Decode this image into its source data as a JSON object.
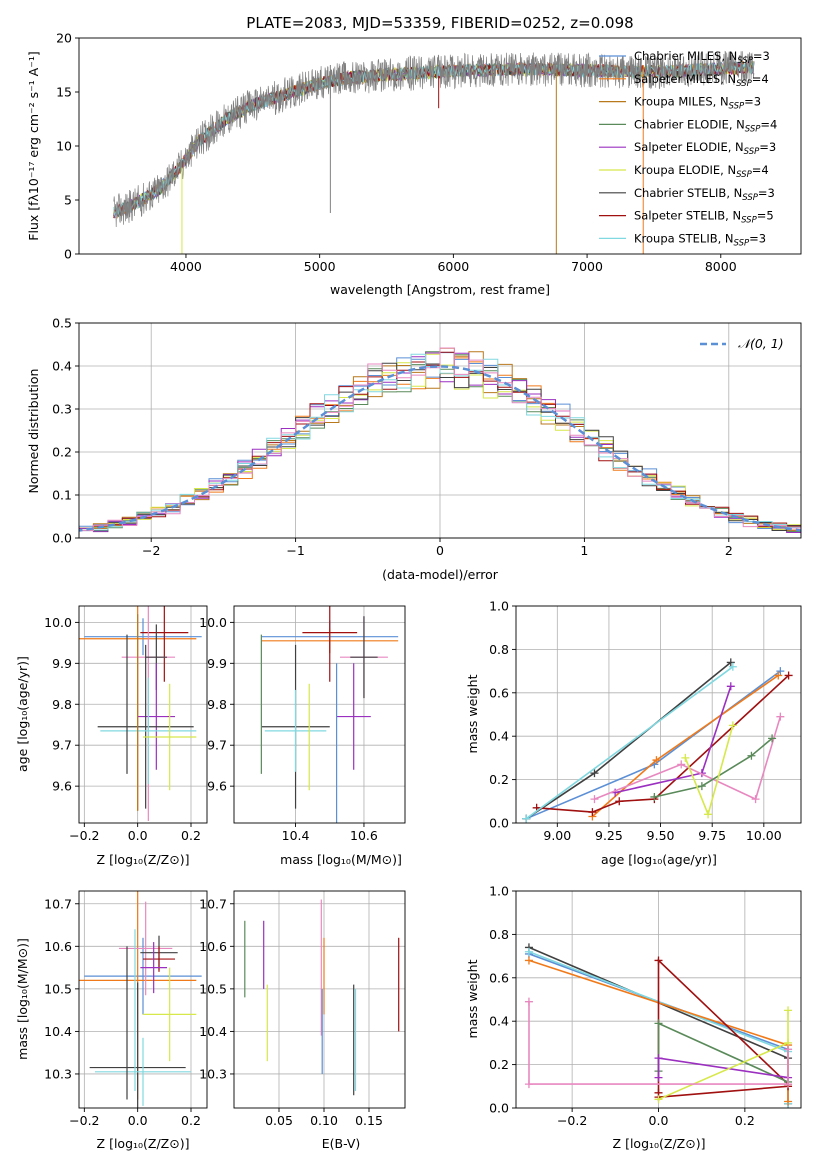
{
  "chart_data": [
    {
      "type": "line",
      "id": "spectrum",
      "title": "PLATE=2083, MJD=53359, FIBERID=0252, z=0.098",
      "xlabel": "wavelength [Angstrom, rest frame]",
      "ylabel": "Flux [fλ10⁻¹⁷ erg cm⁻² s⁻¹ A⁻¹]",
      "xlim": [
        3200,
        8600
      ],
      "ylim": [
        0,
        20
      ],
      "xticks": [
        4000,
        5000,
        6000,
        7000,
        8000
      ],
      "yticks": [
        0,
        5,
        10,
        15,
        20
      ],
      "grid": false,
      "legend_position": "upper-right",
      "continuum": {
        "x": [
          3450,
          3600,
          3800,
          3950,
          4100,
          4300,
          4500,
          4800,
          5000,
          5200,
          5500,
          5800,
          6100,
          6400,
          6700,
          7000,
          7300,
          7600,
          7900,
          8250
        ],
        "y": [
          3.8,
          4.5,
          6.0,
          8.0,
          10.5,
          12.5,
          13.8,
          15.0,
          15.8,
          16.3,
          16.6,
          16.8,
          17.0,
          17.1,
          17.1,
          17.0,
          16.9,
          16.9,
          17.1,
          17.3
        ]
      },
      "series": [
        {
          "name": "Chabrier MILES, N_SSP=3",
          "color": "#5b8fd6"
        },
        {
          "name": "Salpeter MILES, N_SSP=4",
          "color": "#f07a1a"
        },
        {
          "name": "Kroupa MILES, N_SSP=3",
          "color": "#b8781c"
        },
        {
          "name": "Chabrier ELODIE, N_SSP=4",
          "color": "#5a8a5a"
        },
        {
          "name": "Salpeter ELODIE, N_SSP=3",
          "color": "#9b30c0"
        },
        {
          "name": "Kroupa ELODIE, N_SSP=4",
          "color": "#d6e84a"
        },
        {
          "name": "Chabrier STELIB, N_SSP=3",
          "color": "#404040"
        },
        {
          "name": "Salpeter STELIB, N_SSP=5",
          "color": "#a01010"
        },
        {
          "name": "Kroupa STELIB, N_SSP=3",
          "color": "#80d8e0"
        }
      ]
    },
    {
      "type": "line",
      "id": "residuals",
      "xlabel": "(data-model)/error",
      "ylabel": "Normed distribution",
      "xlim": [
        -2.5,
        2.5
      ],
      "ylim": [
        0,
        0.5
      ],
      "xticks": [
        -2,
        -1,
        0,
        1,
        2
      ],
      "yticks": [
        0.0,
        0.1,
        0.2,
        0.3,
        0.4,
        0.5
      ],
      "grid": true,
      "legend_position": "upper-right",
      "legend": "𝒩(0, 1)",
      "gaussian_color": "#5b8fd6",
      "bin_width": 0.1,
      "histograms": [
        {
          "color": "#5b8fd6",
          "seed": 1
        },
        {
          "color": "#f07a1a",
          "seed": 2
        },
        {
          "color": "#b8781c",
          "seed": 3
        },
        {
          "color": "#5a8a5a",
          "seed": 4
        },
        {
          "color": "#9b30c0",
          "seed": 5
        },
        {
          "color": "#d6e84a",
          "seed": 6
        },
        {
          "color": "#404040",
          "seed": 7
        },
        {
          "color": "#a01010",
          "seed": 8
        },
        {
          "color": "#80d8e0",
          "seed": 9
        },
        {
          "color": "#e888c0",
          "seed": 10
        }
      ]
    },
    {
      "type": "scatter",
      "id": "age-vs-Z",
      "xlabel": "Z [log₁₀(Z/Z⊙)]",
      "ylabel": "age  [log₁₀(age/yr)]",
      "xlim": [
        -0.22,
        0.26
      ],
      "ylim": [
        9.51,
        10.04
      ],
      "xticks": [
        -0.2,
        0.0,
        0.2
      ],
      "xticklabels": [
        "−0.2",
        "0.0",
        "0.2"
      ],
      "yticks": [
        9.6,
        9.7,
        9.8,
        9.9,
        10.0
      ],
      "grid": true,
      "points": [
        {
          "x": 0.02,
          "y": 9.965,
          "xerr": 0.22,
          "yerr": 0.045,
          "color": "#5b8fd6"
        },
        {
          "x": 0.0,
          "y": 9.96,
          "xerr": 0.22,
          "yerr": 0.42,
          "color": "#f07a1a"
        },
        {
          "x": 0.1,
          "y": 9.975,
          "xerr": 0.09,
          "yerr": 0.12,
          "color": "#a01010"
        },
        {
          "x": 0.04,
          "y": 9.915,
          "xerr": 0.1,
          "yerr": 0.4,
          "color": "#e888c0"
        },
        {
          "x": 0.07,
          "y": 9.915,
          "xerr": 0.04,
          "yerr": 0.08,
          "color": "#404040"
        },
        {
          "x": 0.07,
          "y": 9.77,
          "xerr": 0.07,
          "yerr": 0.13,
          "color": "#9b30c0"
        },
        {
          "x": 0.03,
          "y": 9.745,
          "xerr": 0.18,
          "yerr": 0.2,
          "color": "#404040"
        },
        {
          "x": 0.04,
          "y": 9.735,
          "xerr": 0.18,
          "yerr": 0.13,
          "color": "#80d8e0"
        },
        {
          "x": 0.12,
          "y": 9.72,
          "xerr": 0.1,
          "yerr": 0.13,
          "color": "#d6e84a"
        },
        {
          "x": -0.04,
          "y": 9.8,
          "xerr": 0.0,
          "yerr": 0.17,
          "color": "#404040"
        },
        {
          "x": 0.0,
          "y": 9.78,
          "xerr": 0.0,
          "yerr": 0.24,
          "color": "#b8781c"
        }
      ]
    },
    {
      "type": "scatter",
      "id": "age-vs-mass",
      "xlabel": "mass [log₁₀(M/M⊙)]",
      "ylabel": "",
      "xlim": [
        10.22,
        10.72
      ],
      "ylim": [
        9.51,
        10.04
      ],
      "xticks": [
        10.4,
        10.6
      ],
      "yticks": [
        9.6,
        9.7,
        9.8,
        9.9,
        10.0
      ],
      "grid": true,
      "points": [
        {
          "x": 10.5,
          "y": 9.965,
          "xerr": 0.2,
          "yerr": 0.04,
          "color": "#5b8fd6"
        },
        {
          "x": 10.5,
          "y": 9.955,
          "xerr": 0.2,
          "yerr": 0.03,
          "color": "#f07a1a"
        },
        {
          "x": 10.5,
          "y": 9.975,
          "xerr": 0.08,
          "yerr": 0.12,
          "color": "#a01010"
        },
        {
          "x": 10.6,
          "y": 9.915,
          "xerr": 0.07,
          "yerr": 0.1,
          "color": "#e888c0"
        },
        {
          "x": 10.6,
          "y": 9.915,
          "xerr": 0.04,
          "yerr": 0.1,
          "color": "#404040"
        },
        {
          "x": 10.57,
          "y": 9.77,
          "xerr": 0.05,
          "yerr": 0.13,
          "color": "#9b30c0"
        },
        {
          "x": 10.4,
          "y": 9.745,
          "xerr": 0.1,
          "yerr": 0.2,
          "color": "#404040"
        },
        {
          "x": 10.4,
          "y": 9.735,
          "xerr": 0.09,
          "yerr": 0.1,
          "color": "#80d8e0"
        },
        {
          "x": 10.44,
          "y": 9.72,
          "xerr": 0.0,
          "yerr": 0.13,
          "color": "#d6e84a"
        },
        {
          "x": 10.3,
          "y": 9.8,
          "xerr": 0.0,
          "yerr": 0.17,
          "color": "#5a8a5a"
        },
        {
          "x": 10.52,
          "y": 9.7,
          "xerr": 0.0,
          "yerr": 0.2,
          "color": "#5b8fd6"
        }
      ]
    },
    {
      "type": "line",
      "id": "weight-vs-age",
      "xlabel": "age  [log₁₀(age/yr)]",
      "ylabel": "mass weight",
      "xlim": [
        8.8,
        10.18
      ],
      "ylim": [
        0,
        1
      ],
      "xticks": [
        9.0,
        9.25,
        9.5,
        9.75,
        10.0
      ],
      "xticklabels": [
        "9.00",
        "9.25",
        "9.50",
        "9.75",
        "10.00"
      ],
      "yticks": [
        0.0,
        0.2,
        0.4,
        0.6,
        0.8,
        1.0
      ],
      "grid": true,
      "series": [
        {
          "color": "#5b8fd6",
          "x": [
            8.85,
            9.47,
            10.08
          ],
          "y": [
            0.02,
            0.27,
            0.7
          ]
        },
        {
          "color": "#f07a1a",
          "x": [
            9.17,
            9.48,
            10.07
          ],
          "y": [
            0.03,
            0.29,
            0.68
          ]
        },
        {
          "color": "#404040",
          "x": [
            8.85,
            9.18,
            9.84
          ],
          "y": [
            0.02,
            0.23,
            0.74
          ]
        },
        {
          "color": "#a01010",
          "x": [
            8.9,
            9.17,
            9.3,
            9.47,
            10.12
          ],
          "y": [
            0.07,
            0.05,
            0.1,
            0.11,
            0.68
          ]
        },
        {
          "color": "#9b30c0",
          "x": [
            9.28,
            9.7,
            9.84
          ],
          "y": [
            0.14,
            0.23,
            0.63
          ]
        },
        {
          "color": "#e888c0",
          "x": [
            9.18,
            9.6,
            9.96,
            10.08
          ],
          "y": [
            0.11,
            0.27,
            0.11,
            0.49
          ]
        },
        {
          "color": "#5a8a5a",
          "x": [
            9.47,
            9.7,
            9.94,
            10.04
          ],
          "y": [
            0.12,
            0.17,
            0.31,
            0.39
          ]
        },
        {
          "color": "#d6e84a",
          "x": [
            9.62,
            9.73,
            9.85
          ],
          "y": [
            0.3,
            0.04,
            0.45
          ]
        },
        {
          "color": "#80d8e0",
          "x": [
            8.85,
            9.85
          ],
          "y": [
            0.02,
            0.72
          ]
        }
      ]
    },
    {
      "type": "scatter",
      "id": "mass-vs-Z",
      "xlabel": "Z [log₁₀(Z/Z⊙)]",
      "ylabel": "mass [log₁₀(M/M⊙)]",
      "xlim": [
        -0.22,
        0.26
      ],
      "ylim": [
        10.22,
        10.73
      ],
      "xticks": [
        -0.2,
        0.0,
        0.2
      ],
      "xticklabels": [
        "−0.2",
        "0.0",
        "0.2"
      ],
      "yticks": [
        10.3,
        10.4,
        10.5,
        10.6,
        10.7
      ],
      "grid": true,
      "points": [
        {
          "x": 0.02,
          "y": 10.53,
          "xerr": 0.22,
          "yerr": 0.09,
          "color": "#5b8fd6"
        },
        {
          "x": 0.0,
          "y": 10.52,
          "xerr": 0.22,
          "yerr": 0.28,
          "color": "#f07a1a"
        },
        {
          "x": 0.03,
          "y": 10.595,
          "xerr": 0.1,
          "yerr": 0.11,
          "color": "#e888c0"
        },
        {
          "x": 0.08,
          "y": 10.585,
          "xerr": 0.07,
          "yerr": 0.04,
          "color": "#404040"
        },
        {
          "x": 0.08,
          "y": 10.57,
          "xerr": 0.06,
          "yerr": 0.03,
          "color": "#a01010"
        },
        {
          "x": 0.06,
          "y": 10.55,
          "xerr": 0.05,
          "yerr": 0.06,
          "color": "#9b30c0"
        },
        {
          "x": 0.12,
          "y": 10.44,
          "xerr": 0.1,
          "yerr": 0.11,
          "color": "#d6e84a"
        },
        {
          "x": 0.0,
          "y": 10.315,
          "xerr": 0.18,
          "yerr": 0.2,
          "color": "#404040"
        },
        {
          "x": 0.02,
          "y": 10.305,
          "xerr": 0.18,
          "yerr": 0.08,
          "color": "#80d8e0"
        },
        {
          "x": -0.04,
          "y": 10.42,
          "xerr": 0.0,
          "yerr": 0.18,
          "color": "#404040"
        },
        {
          "x": -0.01,
          "y": 10.45,
          "xerr": 0.0,
          "yerr": 0.19,
          "color": "#80d8e0"
        }
      ]
    },
    {
      "type": "scatter",
      "id": "mass-vs-ebv",
      "xlabel": "E(B-V)",
      "ylabel": "",
      "xlim": [
        0.0,
        0.19
      ],
      "ylim": [
        10.22,
        10.73
      ],
      "xticks": [
        0.05,
        0.1,
        0.15
      ],
      "xticklabels": [
        "0.05",
        "0.10",
        "0.15"
      ],
      "yticks": [
        10.3,
        10.4,
        10.5,
        10.6,
        10.7
      ],
      "grid": true,
      "points": [
        {
          "x": 0.012,
          "y": 10.57,
          "yerr": 0.09,
          "color": "#5a8a5a"
        },
        {
          "x": 0.033,
          "y": 10.58,
          "yerr": 0.08,
          "color": "#9b30c0"
        },
        {
          "x": 0.037,
          "y": 10.42,
          "yerr": 0.09,
          "color": "#d6e84a"
        },
        {
          "x": 0.1,
          "y": 10.53,
          "yerr": 0.09,
          "color": "#f07a1a"
        },
        {
          "x": 0.097,
          "y": 10.55,
          "yerr": 0.16,
          "color": "#e888c0"
        },
        {
          "x": 0.098,
          "y": 10.4,
          "yerr": 0.1,
          "color": "#5b8fd6"
        },
        {
          "x": 0.133,
          "y": 10.38,
          "yerr": 0.13,
          "color": "#404040"
        },
        {
          "x": 0.135,
          "y": 10.38,
          "yerr": 0.12,
          "color": "#80d8e0"
        },
        {
          "x": 0.183,
          "y": 10.51,
          "yerr": 0.11,
          "color": "#a01010"
        }
      ]
    },
    {
      "type": "line",
      "id": "weight-vs-Z",
      "xlabel": "Z [log₁₀(Z/Z⊙)]",
      "ylabel": "mass weight",
      "xlim": [
        -0.33,
        0.33
      ],
      "ylim": [
        0,
        1
      ],
      "xticks": [
        -0.2,
        0.0,
        0.2
      ],
      "xticklabels": [
        "−0.2",
        "0.0",
        "0.2"
      ],
      "yticks": [
        0.0,
        0.2,
        0.4,
        0.6,
        0.8,
        1.0
      ],
      "grid": true,
      "series": [
        {
          "color": "#404040",
          "x": [
            -0.3,
            0.3,
            0.3
          ],
          "y": [
            0.74,
            0.23,
            0.02
          ]
        },
        {
          "color": "#5b8fd6",
          "x": [
            -0.3,
            0.3,
            0.3
          ],
          "y": [
            0.71,
            0.27,
            0.02
          ]
        },
        {
          "color": "#80d8e0",
          "x": [
            -0.3,
            0.3,
            0.3
          ],
          "y": [
            0.72,
            0.26,
            0.02
          ]
        },
        {
          "color": "#f07a1a",
          "x": [
            -0.3,
            0.3,
            0.3
          ],
          "y": [
            0.68,
            0.29,
            0.03
          ]
        },
        {
          "color": "#a01010",
          "x": [
            0.0,
            0.0,
            0.3,
            0.3,
            0.0
          ],
          "y": [
            0.07,
            0.68,
            0.11,
            0.1,
            0.05
          ]
        },
        {
          "color": "#5a8a5a",
          "x": [
            0.0,
            0.0,
            0.3
          ],
          "y": [
            0.17,
            0.39,
            0.12
          ]
        },
        {
          "color": "#9b30c0",
          "x": [
            0.0,
            0.0,
            0.3
          ],
          "y": [
            0.14,
            0.23,
            0.14
          ]
        },
        {
          "color": "#d6e84a",
          "x": [
            0.0,
            0.3,
            0.3
          ],
          "y": [
            0.04,
            0.3,
            0.45
          ]
        },
        {
          "color": "#e888c0",
          "x": [
            -0.3,
            -0.3,
            0.3,
            0.3
          ],
          "y": [
            0.49,
            0.11,
            0.11,
            0.27
          ]
        }
      ]
    }
  ]
}
